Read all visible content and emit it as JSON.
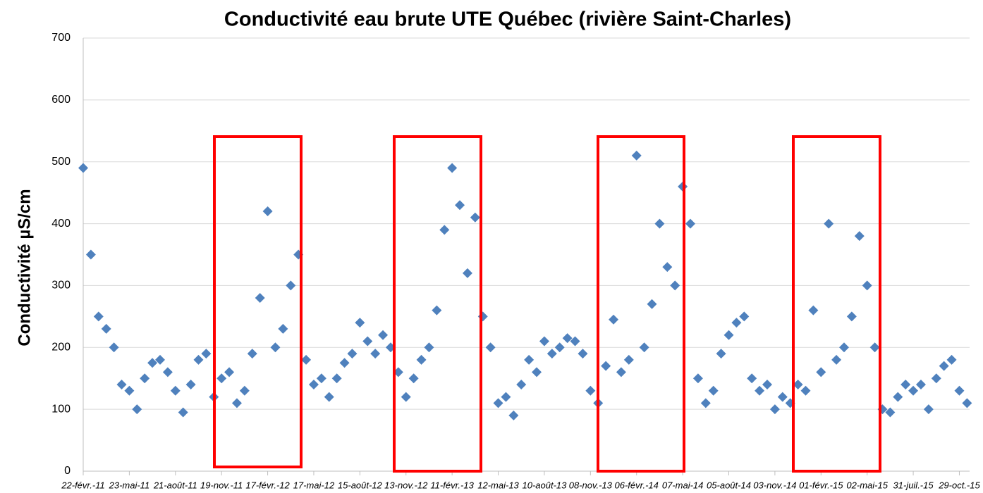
{
  "chart_data": {
    "type": "scatter",
    "title": "Conductivité eau brute UTE Québec (rivière Saint-Charles)",
    "y_label": "Conductivité µS/cm",
    "color": "#4f81bd",
    "marker": "diamond",
    "grid": true,
    "ylim": [
      0,
      700
    ],
    "yticks": [
      0,
      100,
      200,
      300,
      400,
      500,
      600,
      700
    ],
    "xlim": [
      "2011-02-22",
      "2015-11-18"
    ],
    "xticks": [
      {
        "value": "2011-02-22",
        "label": "22-févr.-11"
      },
      {
        "value": "2011-05-23",
        "label": "23-mai-11"
      },
      {
        "value": "2011-08-21",
        "label": "21-août-11"
      },
      {
        "value": "2011-11-19",
        "label": "19-nov.-11"
      },
      {
        "value": "2012-02-17",
        "label": "17-févr.-12"
      },
      {
        "value": "2012-05-17",
        "label": "17-mai-12"
      },
      {
        "value": "2012-08-15",
        "label": "15-août-12"
      },
      {
        "value": "2012-11-13",
        "label": "13-nov.-12"
      },
      {
        "value": "2013-02-11",
        "label": "11-févr.-13"
      },
      {
        "value": "2013-05-12",
        "label": "12-mai-13"
      },
      {
        "value": "2013-08-10",
        "label": "10-août-13"
      },
      {
        "value": "2013-11-08",
        "label": "08-nov.-13"
      },
      {
        "value": "2014-02-06",
        "label": "06-févr.-14"
      },
      {
        "value": "2014-05-07",
        "label": "07-mai-14"
      },
      {
        "value": "2014-08-05",
        "label": "05-août-14"
      },
      {
        "value": "2014-11-03",
        "label": "03-nov.-14"
      },
      {
        "value": "2015-02-01",
        "label": "01-févr.-15"
      },
      {
        "value": "2015-05-02",
        "label": "02-mai-15"
      },
      {
        "value": "2015-07-31",
        "label": "31-juil.-15"
      },
      {
        "value": "2015-10-29",
        "label": "29-oct.-15"
      }
    ],
    "x": [
      "2011-02-22",
      "2011-03-09",
      "2011-03-24",
      "2011-04-08",
      "2011-04-23",
      "2011-05-08",
      "2011-05-23",
      "2011-06-07",
      "2011-06-22",
      "2011-07-07",
      "2011-07-22",
      "2011-08-06",
      "2011-08-21",
      "2011-09-05",
      "2011-09-20",
      "2011-10-05",
      "2011-10-20",
      "2011-11-04",
      "2011-11-19",
      "2011-12-04",
      "2011-12-19",
      "2012-01-03",
      "2012-01-18",
      "2012-02-02",
      "2012-02-17",
      "2012-03-03",
      "2012-03-18",
      "2012-04-02",
      "2012-04-17",
      "2012-05-02",
      "2012-05-17",
      "2012-06-01",
      "2012-06-16",
      "2012-07-01",
      "2012-07-16",
      "2012-07-31",
      "2012-08-15",
      "2012-08-30",
      "2012-09-14",
      "2012-09-29",
      "2012-10-14",
      "2012-10-29",
      "2012-11-13",
      "2012-11-28",
      "2012-12-13",
      "2012-12-28",
      "2013-01-12",
      "2013-01-27",
      "2013-02-11",
      "2013-02-26",
      "2013-03-13",
      "2013-03-28",
      "2013-04-12",
      "2013-04-27",
      "2013-05-12",
      "2013-05-27",
      "2013-06-11",
      "2013-06-26",
      "2013-07-11",
      "2013-07-26",
      "2013-08-10",
      "2013-08-25",
      "2013-09-09",
      "2013-09-24",
      "2013-10-09",
      "2013-10-24",
      "2013-11-08",
      "2013-11-23",
      "2013-12-08",
      "2013-12-23",
      "2014-01-07",
      "2014-01-22",
      "2014-02-06",
      "2014-02-21",
      "2014-03-08",
      "2014-03-23",
      "2014-04-07",
      "2014-04-22",
      "2014-05-07",
      "2014-05-22",
      "2014-06-06",
      "2014-06-21",
      "2014-07-06",
      "2014-07-21",
      "2014-08-05",
      "2014-08-20",
      "2014-09-04",
      "2014-09-19",
      "2014-10-04",
      "2014-10-19",
      "2014-11-03",
      "2014-11-18",
      "2014-12-03",
      "2014-12-18",
      "2015-01-02",
      "2015-01-17",
      "2015-02-01",
      "2015-02-16",
      "2015-03-03",
      "2015-03-18",
      "2015-04-02",
      "2015-04-17",
      "2015-05-02",
      "2015-05-17",
      "2015-06-01",
      "2015-06-16",
      "2015-07-01",
      "2015-07-16",
      "2015-07-31",
      "2015-08-15",
      "2015-08-30",
      "2015-09-14",
      "2015-09-29",
      "2015-10-14",
      "2015-10-29",
      "2015-11-13"
    ],
    "values": [
      490,
      350,
      250,
      230,
      200,
      140,
      130,
      100,
      150,
      175,
      180,
      160,
      130,
      95,
      140,
      180,
      190,
      120,
      150,
      160,
      110,
      130,
      190,
      280,
      420,
      200,
      230,
      300,
      350,
      180,
      140,
      150,
      120,
      150,
      175,
      190,
      240,
      210,
      190,
      220,
      200,
      160,
      120,
      150,
      180,
      200,
      260,
      390,
      490,
      430,
      320,
      410,
      250,
      200,
      110,
      120,
      90,
      140,
      180,
      160,
      210,
      190,
      200,
      215,
      210,
      190,
      130,
      110,
      170,
      245,
      160,
      180,
      510,
      200,
      270,
      400,
      330,
      300,
      460,
      400,
      150,
      110,
      130,
      190,
      220,
      240,
      250,
      150,
      130,
      140,
      100,
      120,
      110,
      140,
      130,
      260,
      160,
      400,
      180,
      200,
      250,
      380,
      300,
      200,
      100,
      95,
      120,
      140,
      130,
      140,
      100,
      150,
      170,
      180,
      130,
      110
    ]
  }
}
